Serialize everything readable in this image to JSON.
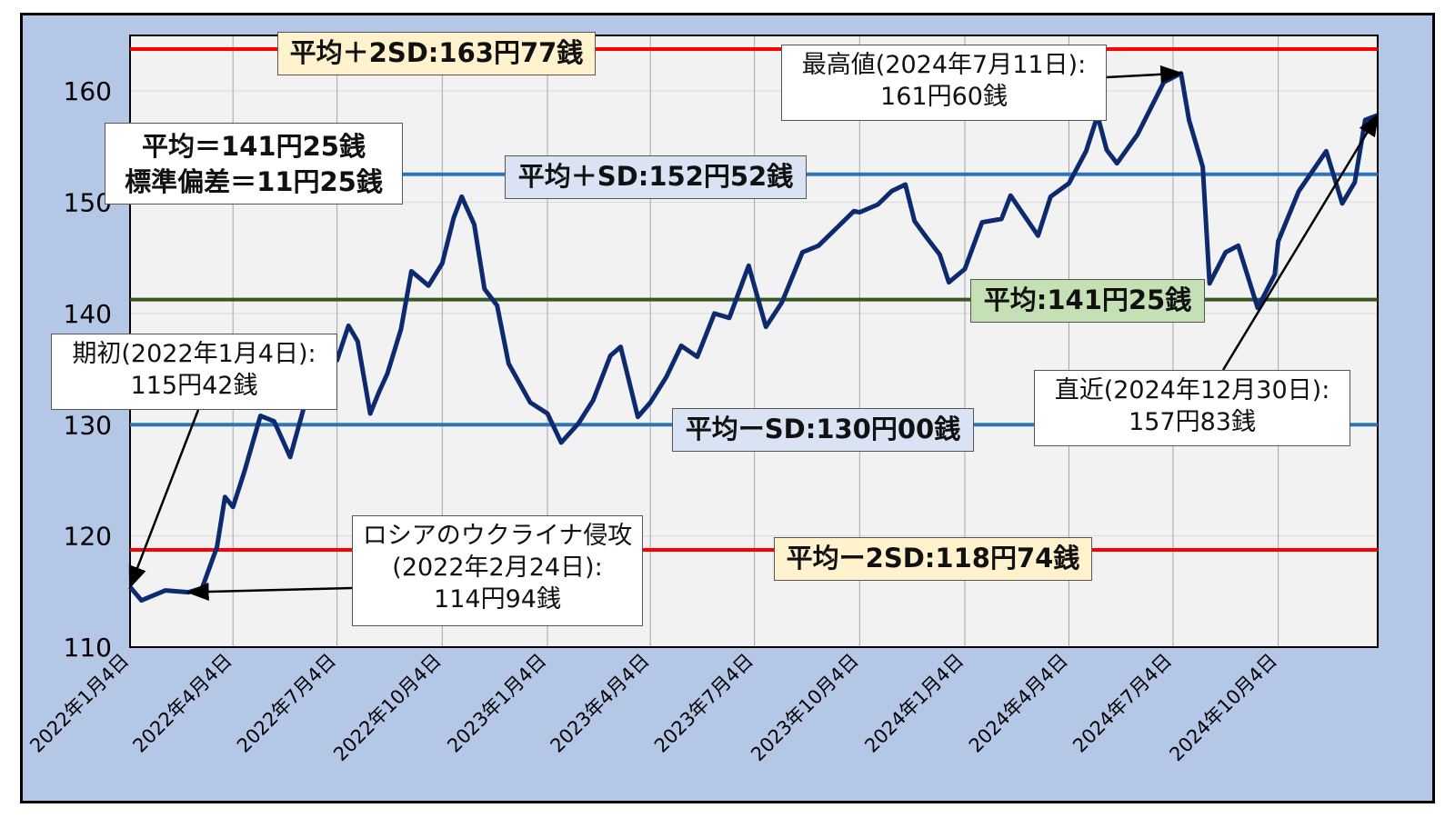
{
  "chart_data": {
    "type": "line",
    "title": "",
    "xlabel": "",
    "ylabel": "",
    "ylim": [
      110,
      165
    ],
    "yticks": [
      110,
      120,
      130,
      140,
      150,
      160
    ],
    "x_tick_labels": [
      "2022年1月4日",
      "2022年4月4日",
      "2022年7月4日",
      "2022年10月4日",
      "2023年1月4日",
      "2023年4月4日",
      "2023年7月4日",
      "2023年10月4日",
      "2024年1月4日",
      "2024年4月4日",
      "2024年7月4日",
      "2024年10月4日"
    ],
    "x_tick_dates": [
      "2022-01-04",
      "2022-04-04",
      "2022-07-04",
      "2022-10-04",
      "2023-01-04",
      "2023-04-04",
      "2023-07-04",
      "2023-10-04",
      "2024-01-04",
      "2024-04-04",
      "2024-07-04",
      "2024-10-04"
    ],
    "x_range": [
      "2022-01-04",
      "2024-12-30"
    ],
    "grid": true,
    "series": [
      {
        "color": "#0d2a6e",
        "points": [
          [
            "2022-01-04",
            115.42
          ],
          [
            "2022-01-14",
            114.2
          ],
          [
            "2022-02-04",
            115.1
          ],
          [
            "2022-02-24",
            114.94
          ],
          [
            "2022-03-08",
            115.3
          ],
          [
            "2022-03-21",
            119.0
          ],
          [
            "2022-03-28",
            123.5
          ],
          [
            "2022-04-04",
            122.6
          ],
          [
            "2022-04-14",
            125.8
          ],
          [
            "2022-04-28",
            130.8
          ],
          [
            "2022-05-10",
            130.3
          ],
          [
            "2022-05-24",
            127.1
          ],
          [
            "2022-06-06",
            131.9
          ],
          [
            "2022-06-14",
            134.4
          ],
          [
            "2022-06-24",
            135.2
          ],
          [
            "2022-07-04",
            135.8
          ],
          [
            "2022-07-14",
            138.9
          ],
          [
            "2022-07-22",
            137.5
          ],
          [
            "2022-08-02",
            131.0
          ],
          [
            "2022-08-10",
            133.0
          ],
          [
            "2022-08-17",
            134.6
          ],
          [
            "2022-08-29",
            138.6
          ],
          [
            "2022-09-07",
            143.8
          ],
          [
            "2022-09-14",
            143.2
          ],
          [
            "2022-09-22",
            142.5
          ],
          [
            "2022-10-04",
            144.5
          ],
          [
            "2022-10-14",
            148.6
          ],
          [
            "2022-10-21",
            150.5
          ],
          [
            "2022-11-01",
            148.0
          ],
          [
            "2022-11-10",
            142.2
          ],
          [
            "2022-11-21",
            140.7
          ],
          [
            "2022-12-01",
            135.5
          ],
          [
            "2022-12-20",
            132.0
          ],
          [
            "2023-01-04",
            131.0
          ],
          [
            "2023-01-16",
            128.4
          ],
          [
            "2023-01-31",
            130.1
          ],
          [
            "2023-02-13",
            132.2
          ],
          [
            "2023-02-28",
            136.2
          ],
          [
            "2023-03-09",
            137.0
          ],
          [
            "2023-03-24",
            130.7
          ],
          [
            "2023-04-04",
            132.0
          ],
          [
            "2023-04-18",
            134.3
          ],
          [
            "2023-05-01",
            137.1
          ],
          [
            "2023-05-15",
            136.1
          ],
          [
            "2023-05-30",
            140.0
          ],
          [
            "2023-06-12",
            139.6
          ],
          [
            "2023-06-29",
            144.3
          ],
          [
            "2023-07-14",
            138.8
          ],
          [
            "2023-07-28",
            141.0
          ],
          [
            "2023-08-15",
            145.5
          ],
          [
            "2023-08-29",
            146.1
          ],
          [
            "2023-09-15",
            147.8
          ],
          [
            "2023-09-29",
            149.2
          ],
          [
            "2023-10-04",
            149.1
          ],
          [
            "2023-10-20",
            149.8
          ],
          [
            "2023-11-01",
            151.0
          ],
          [
            "2023-11-13",
            151.6
          ],
          [
            "2023-11-21",
            148.3
          ],
          [
            "2023-12-01",
            146.9
          ],
          [
            "2023-12-13",
            145.3
          ],
          [
            "2023-12-21",
            142.8
          ],
          [
            "2024-01-04",
            144.0
          ],
          [
            "2024-01-19",
            148.2
          ],
          [
            "2024-02-05",
            148.5
          ],
          [
            "2024-02-13",
            150.6
          ],
          [
            "2024-03-08",
            147.0
          ],
          [
            "2024-03-19",
            150.5
          ],
          [
            "2024-04-04",
            151.7
          ],
          [
            "2024-04-19",
            154.6
          ],
          [
            "2024-04-29",
            157.8
          ],
          [
            "2024-05-07",
            154.7
          ],
          [
            "2024-05-16",
            153.5
          ],
          [
            "2024-06-03",
            156.1
          ],
          [
            "2024-06-26",
            160.8
          ],
          [
            "2024-07-11",
            161.6
          ],
          [
            "2024-07-18",
            157.4
          ],
          [
            "2024-07-30",
            153.2
          ],
          [
            "2024-08-05",
            142.7
          ],
          [
            "2024-08-19",
            145.5
          ],
          [
            "2024-08-30",
            146.1
          ],
          [
            "2024-09-16",
            140.5
          ],
          [
            "2024-10-01",
            143.5
          ],
          [
            "2024-10-04",
            146.5
          ],
          [
            "2024-10-22",
            151.0
          ],
          [
            "2024-11-15",
            154.6
          ],
          [
            "2024-11-29",
            149.9
          ],
          [
            "2024-12-10",
            151.8
          ],
          [
            "2024-12-19",
            157.4
          ],
          [
            "2024-12-30",
            157.83
          ]
        ]
      }
    ],
    "reference_lines": [
      {
        "label": "平均＋2SD:163円77銭",
        "value": 163.77,
        "color": "#ff0000"
      },
      {
        "label": "平均＋SD:152円52銭",
        "value": 152.52,
        "color": "#2e75b6"
      },
      {
        "label": "平均:141円25銭",
        "value": 141.25,
        "color": "#375623"
      },
      {
        "label": "平均ーSD:130円00銭",
        "value": 130.0,
        "color": "#2e75b6"
      },
      {
        "label": "平均ー2SD:118円74銭",
        "value": 118.74,
        "color": "#ff0000"
      }
    ],
    "stats_box": [
      "平均＝141円25銭",
      "標準偏差＝11円25銭"
    ],
    "annotations": [
      {
        "lines": [
          "期初(2022年1月4日):",
          "115円42銭"
        ],
        "date": "2022-01-04",
        "value": 115.42
      },
      {
        "lines": [
          "ロシアのウクライナ侵攻",
          "(2022年2月24日):",
          "114円94銭"
        ],
        "date": "2022-02-24",
        "value": 114.94
      },
      {
        "lines": [
          "最高値(2024年7月11日):",
          "161円60銭"
        ],
        "date": "2024-07-11",
        "value": 161.6
      },
      {
        "lines": [
          "直近(2024年12月30日):",
          "157円83銭"
        ],
        "date": "2024-12-30",
        "value": 157.83
      }
    ]
  }
}
